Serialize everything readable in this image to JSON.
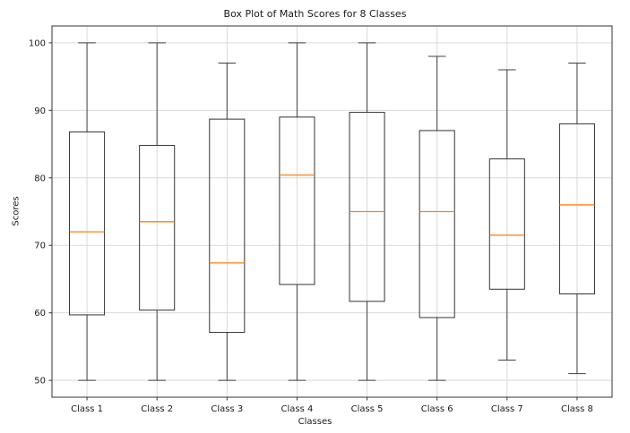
{
  "chart_data": {
    "type": "box",
    "title": "Box Plot of Math Scores for 8 Classes",
    "xlabel": "Classes",
    "ylabel": "Scores",
    "categories": [
      "Class 1",
      "Class 2",
      "Class 3",
      "Class 4",
      "Class 5",
      "Class 6",
      "Class 7",
      "Class 8"
    ],
    "yticks": [
      50,
      60,
      70,
      80,
      90,
      100
    ],
    "ylim": [
      47.5,
      102.5
    ],
    "grid": true,
    "legend": "none",
    "series": [
      {
        "name": "Class 1",
        "min": 50,
        "q1": 59.7,
        "median": 72,
        "q3": 86.8,
        "max": 100
      },
      {
        "name": "Class 2",
        "min": 50,
        "q1": 60.4,
        "median": 73.5,
        "q3": 84.8,
        "max": 100
      },
      {
        "name": "Class 3",
        "min": 50,
        "q1": 57.1,
        "median": 67.4,
        "q3": 88.7,
        "max": 97
      },
      {
        "name": "Class 4",
        "min": 50,
        "q1": 64.2,
        "median": 80.4,
        "q3": 89,
        "max": 100
      },
      {
        "name": "Class 5",
        "min": 50,
        "q1": 61.7,
        "median": 75,
        "q3": 89.7,
        "max": 100
      },
      {
        "name": "Class 6",
        "min": 50,
        "q1": 59.3,
        "median": 75,
        "q3": 87,
        "max": 98
      },
      {
        "name": "Class 7",
        "min": 53,
        "q1": 63.5,
        "median": 71.5,
        "q3": 82.8,
        "max": 96
      },
      {
        "name": "Class 8",
        "min": 51,
        "q1": 62.8,
        "median": 76,
        "q3": 88,
        "max": 97
      }
    ],
    "colors": {
      "box_edge": "#333333",
      "whisker": "#404040",
      "median": "#ff7f0e",
      "grid": "#d9d9d9",
      "spine": "#333333",
      "text": "#1a1a1a",
      "background": "#ffffff"
    }
  }
}
